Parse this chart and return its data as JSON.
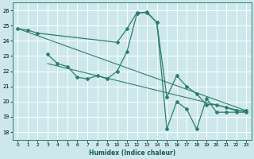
{
  "title": "",
  "xlabel": "Humidex (Indice chaleur)",
  "bg_color": "#cce8ec",
  "line_color": "#2e7d6c",
  "grid_color": "#ffffff",
  "xlim": [
    -0.5,
    23.5
  ],
  "ylim": [
    17.5,
    26.5
  ],
  "xticks": [
    0,
    1,
    2,
    3,
    4,
    5,
    6,
    7,
    8,
    9,
    10,
    11,
    12,
    13,
    14,
    15,
    16,
    17,
    18,
    19,
    20,
    21,
    22,
    23
  ],
  "yticks": [
    18,
    19,
    20,
    21,
    22,
    23,
    24,
    25,
    26
  ],
  "series": [
    {
      "x": [
        0,
        1,
        2,
        10,
        11,
        12,
        13,
        14,
        15,
        16,
        17,
        18,
        19,
        20,
        21,
        22,
        23
      ],
      "y": [
        24.8,
        24.7,
        24.5,
        23.9,
        24.8,
        25.85,
        25.85,
        25.2,
        20.3,
        21.7,
        21.0,
        20.5,
        19.8,
        19.8,
        19.6,
        19.4,
        19.4
      ]
    },
    {
      "x": [
        3,
        4,
        5,
        6,
        7,
        8,
        9,
        10,
        11,
        12,
        13,
        14,
        15,
        16,
        17,
        18,
        19,
        20,
        21,
        22,
        23
      ],
      "y": [
        23.1,
        22.5,
        22.3,
        21.6,
        21.5,
        21.7,
        21.5,
        22.0,
        23.3,
        25.8,
        25.9,
        25.2,
        18.2,
        20.0,
        19.5,
        18.2,
        20.2,
        19.3,
        19.3,
        19.3,
        19.3
      ]
    },
    {
      "comment": "regression line 1 - from (3,22.5) to (23,19.3)",
      "x": [
        3,
        23
      ],
      "y": [
        22.5,
        19.3
      ]
    },
    {
      "comment": "regression line 2 - from (0,24.8) to (23,19.4)",
      "x": [
        0,
        23
      ],
      "y": [
        24.8,
        19.4
      ]
    }
  ]
}
